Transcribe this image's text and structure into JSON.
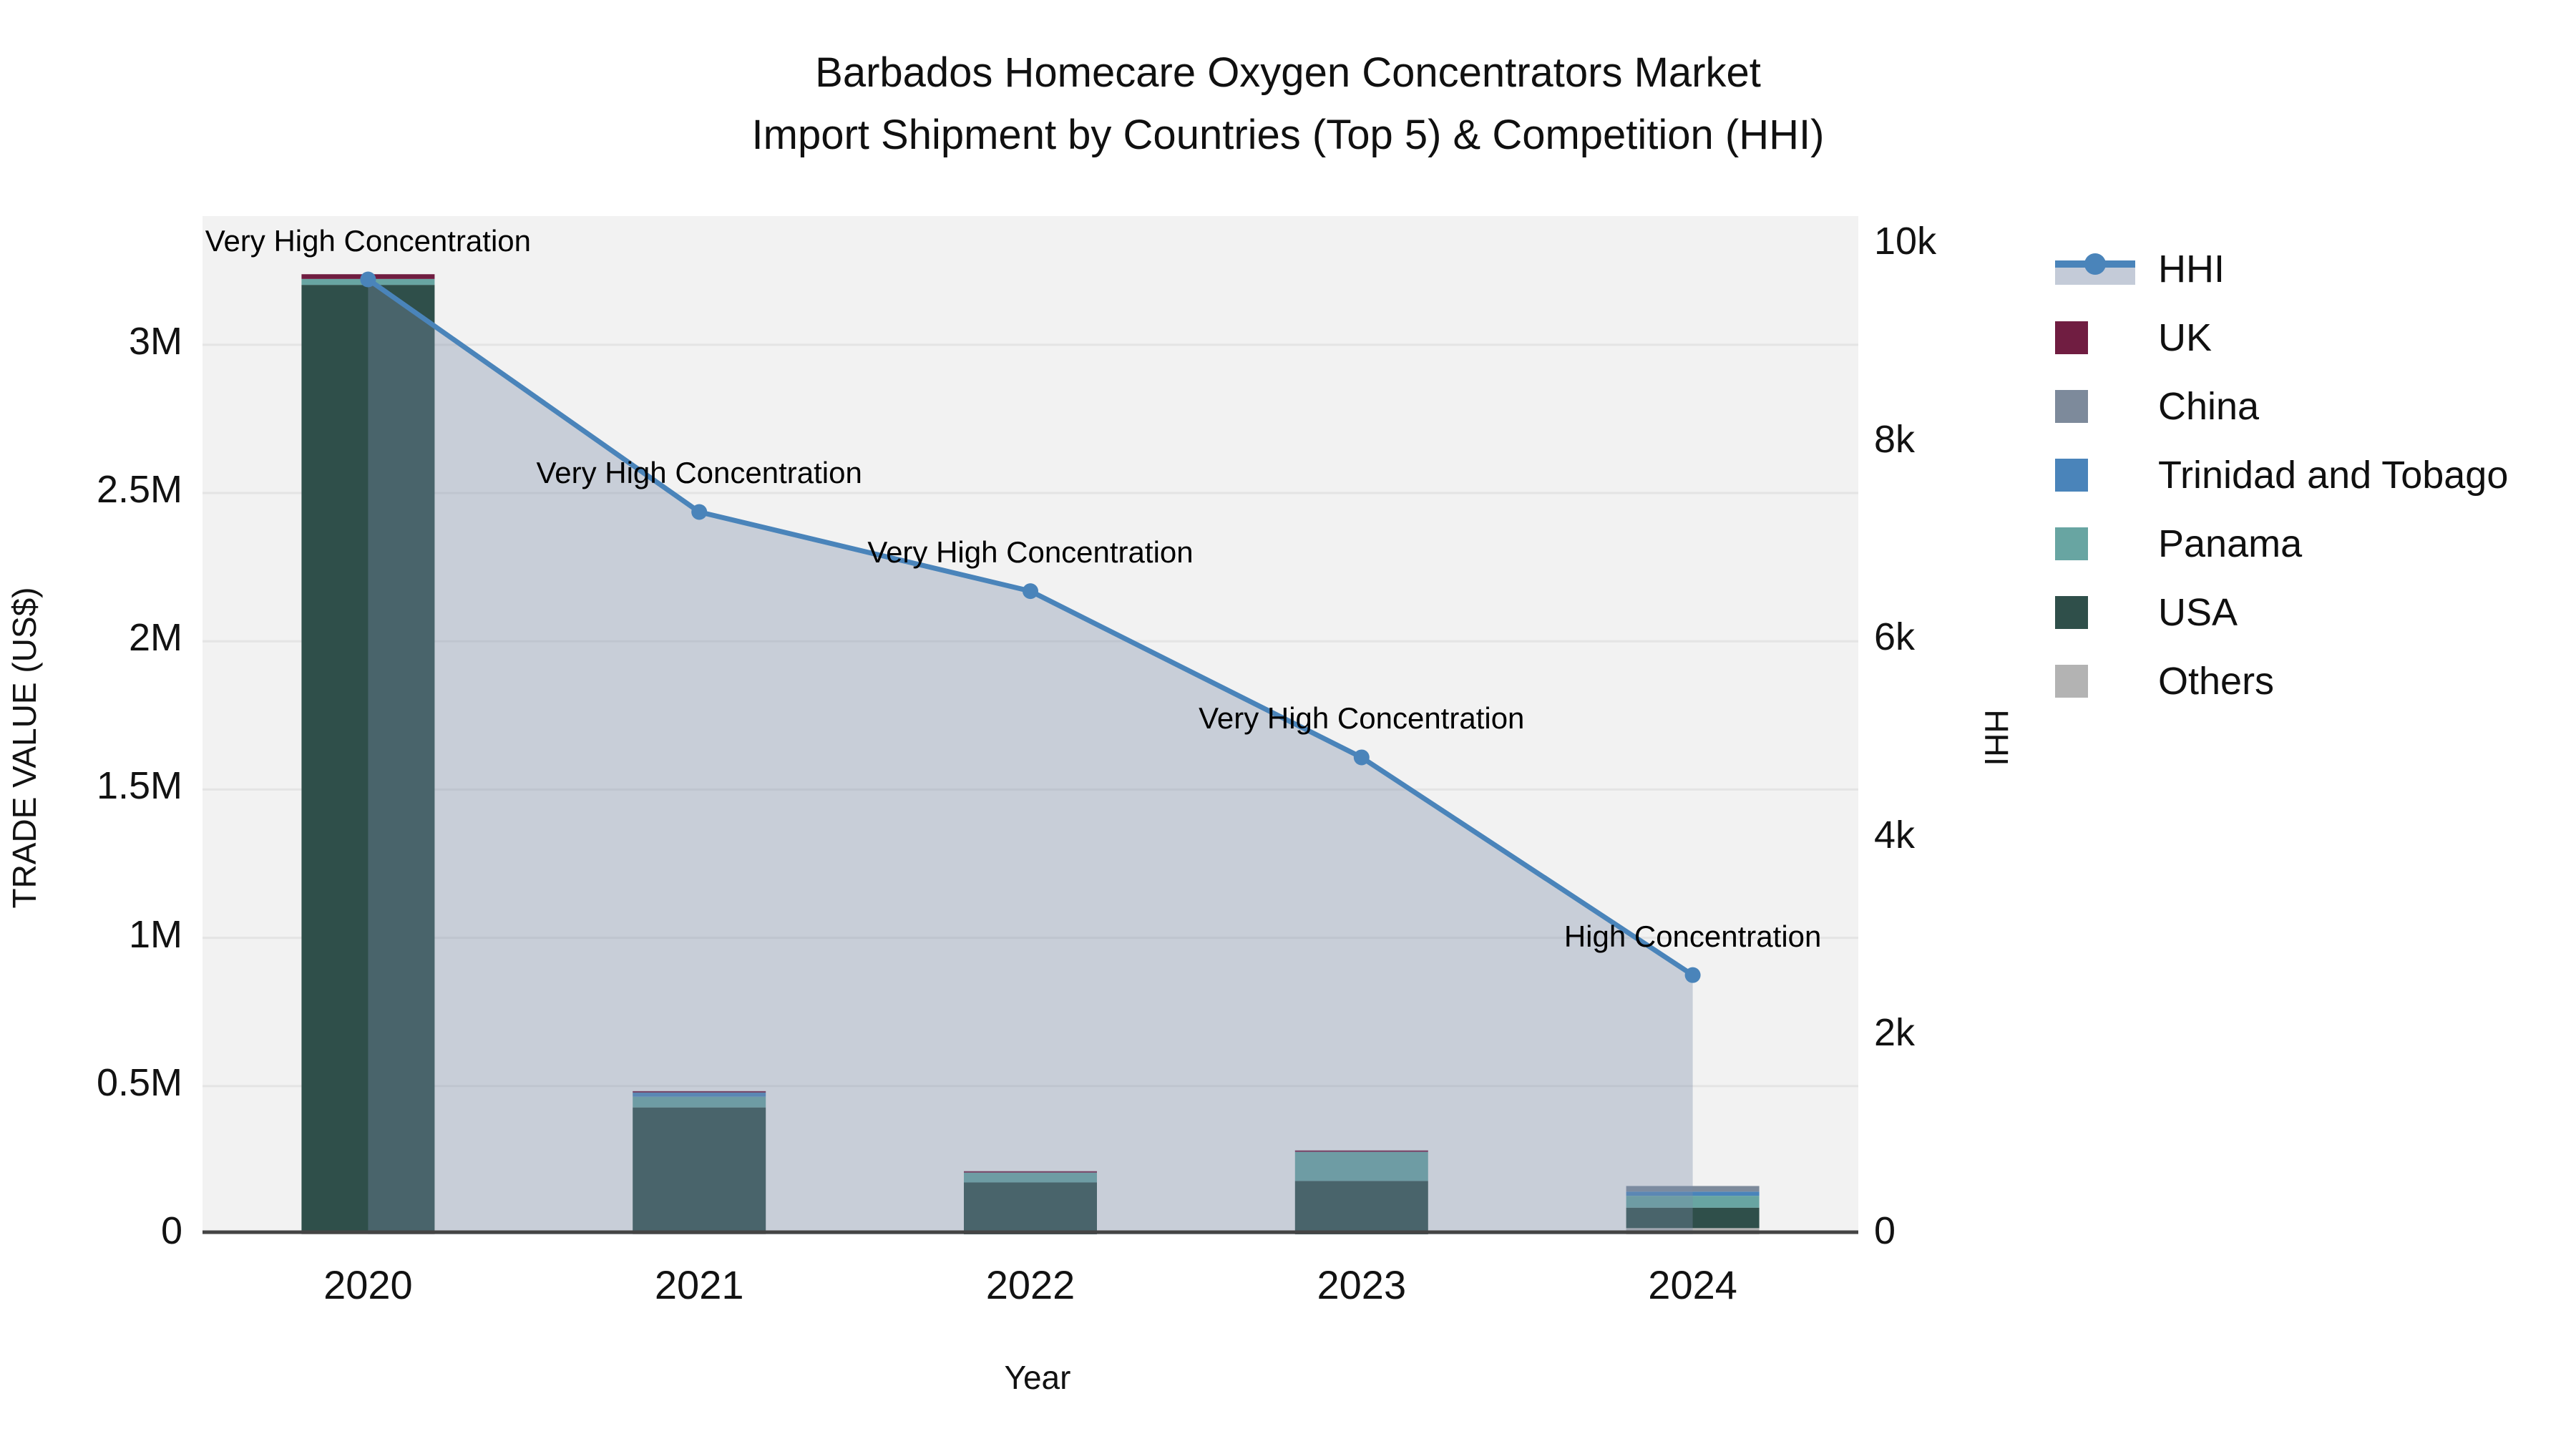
{
  "title": {
    "line1": "Barbados Homecare Oxygen Concentrators Market",
    "line2": "Import Shipment by Countries (Top 5) & Competition (HHI)"
  },
  "axes": {
    "left_title": "TRADE VALUE (US$)",
    "right_title": "HHI",
    "x_title": "Year"
  },
  "colors": {
    "hhi_line": "#4a84ba",
    "hhi_area": "rgba(124,139,168,0.35)",
    "uk": "#701d41",
    "china": "#7d8a9b",
    "trinidad_and_tobago": "#4a84ba",
    "panama": "#68a5a2",
    "usa": "#2f4f4a",
    "others": "#b3b3b3",
    "plot_bg": "#f2f2f2",
    "gridline": "#e4e4e4",
    "axis_line": "#444444"
  },
  "legend": [
    {
      "label": "HHI",
      "type": "line",
      "color": "#4a84ba"
    },
    {
      "label": "UK",
      "type": "swatch",
      "color": "#701d41"
    },
    {
      "label": "China",
      "type": "swatch",
      "color": "#7d8a9b"
    },
    {
      "label": "Trinidad and Tobago",
      "type": "swatch",
      "color": "#4a84ba"
    },
    {
      "label": "Panama",
      "type": "swatch",
      "color": "#68a5a2"
    },
    {
      "label": "USA",
      "type": "swatch",
      "color": "#2f4f4a"
    },
    {
      "label": "Others",
      "type": "swatch",
      "color": "#b3b3b3"
    }
  ],
  "chart_data": {
    "type": "combo (stacked bar + line area, dual y-axis)",
    "title": "Barbados Homecare Oxygen Concentrators Market Import Shipment by Countries (Top 5) & Competition (HHI)",
    "xlabel": "Year",
    "ylabel_left": "TRADE VALUE (US$)",
    "ylabel_right": "HHI",
    "categories": [
      "2020",
      "2021",
      "2022",
      "2023",
      "2024"
    ],
    "bar_series": [
      {
        "name": "UK",
        "color": "#701d41",
        "values": [
          16000,
          5000,
          5000,
          5000,
          0
        ]
      },
      {
        "name": "China",
        "color": "#7d8a9b",
        "values": [
          0,
          0,
          0,
          0,
          19000
        ]
      },
      {
        "name": "Trinidad and Tobago",
        "color": "#4a84ba",
        "values": [
          0,
          14000,
          0,
          0,
          14000
        ]
      },
      {
        "name": "Panama",
        "color": "#68a5a2",
        "values": [
          20000,
          36000,
          33000,
          98000,
          40000
        ]
      },
      {
        "name": "USA",
        "color": "#2f4f4a",
        "values": [
          3190000,
          420000,
          175000,
          180000,
          69000
        ]
      },
      {
        "name": "Others",
        "color": "#b3b3b3",
        "values": [
          12000,
          8000,
          0,
          0,
          21000
        ]
      }
    ],
    "stack_order_bottom_to_top": [
      "Others",
      "USA",
      "Panama",
      "Trinidad and Tobago",
      "China",
      "UK"
    ],
    "line_series": {
      "name": "HHI",
      "color": "#4a84ba",
      "area_fill": "rgba(124,139,168,0.35)",
      "values": [
        9650,
        7300,
        6500,
        4820,
        2620
      ]
    },
    "left_axis": {
      "range": [
        0,
        3434000
      ],
      "ticks": [
        {
          "v": 0,
          "label": "0"
        },
        {
          "v": 500000,
          "label": "0.5M"
        },
        {
          "v": 1000000,
          "label": "1M"
        },
        {
          "v": 1500000,
          "label": "1.5M"
        },
        {
          "v": 2000000,
          "label": "2M"
        },
        {
          "v": 2500000,
          "label": "2.5M"
        },
        {
          "v": 3000000,
          "label": "3M"
        }
      ]
    },
    "right_axis": {
      "range": [
        0,
        10290
      ],
      "ticks": [
        {
          "v": 0,
          "label": "0"
        },
        {
          "v": 2000,
          "label": "2k"
        },
        {
          "v": 4000,
          "label": "4k"
        },
        {
          "v": 6000,
          "label": "6k"
        },
        {
          "v": 8000,
          "label": "8k"
        },
        {
          "v": 10000,
          "label": "10k"
        }
      ]
    },
    "annotations": [
      {
        "year_index": 0,
        "text": "Very High Concentration"
      },
      {
        "year_index": 1,
        "text": "Very High Concentration"
      },
      {
        "year_index": 2,
        "text": "Very High Concentration"
      },
      {
        "year_index": 3,
        "text": "Very High Concentration"
      },
      {
        "year_index": 4,
        "text": "High Concentration"
      }
    ],
    "legend_position": "right",
    "grid": "horizontal, at left-axis ticks"
  }
}
